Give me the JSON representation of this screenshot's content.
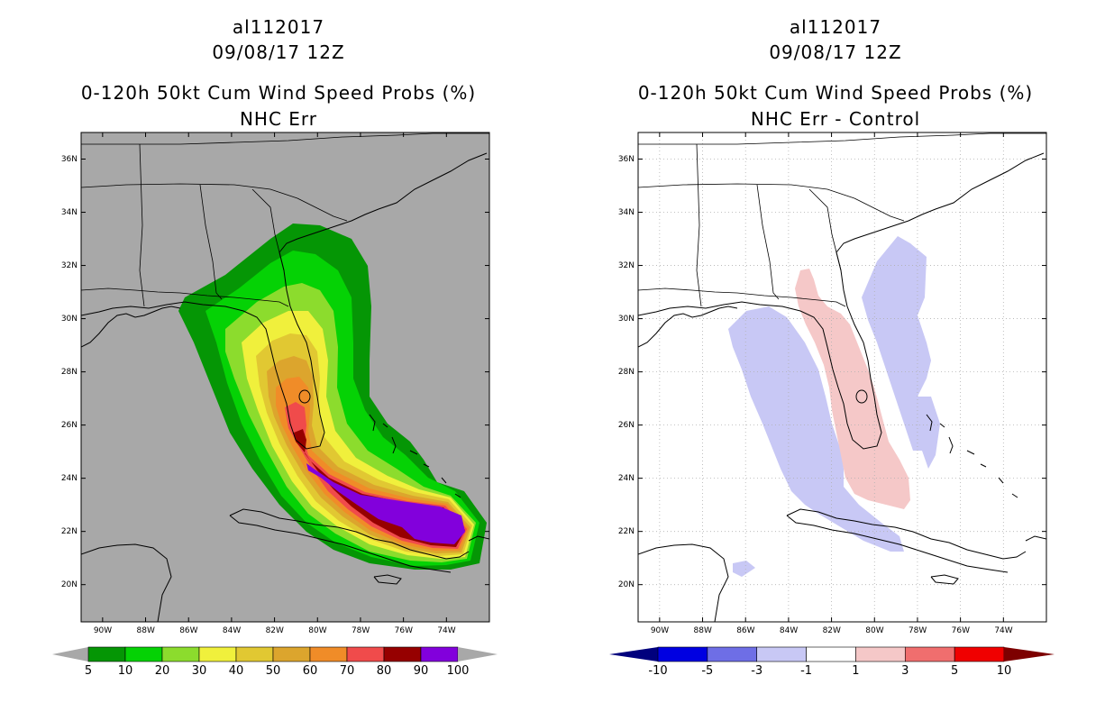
{
  "panels": [
    {
      "id": "left",
      "storm_id": "al112017",
      "datetime": "09/08/17 12Z",
      "product": "0-120h 50kt Cum Wind Speed Probs (%)",
      "subtitle": "NHC Err",
      "background_color": "#a8a8a8",
      "colorbar": {
        "labels": [
          "5",
          "10",
          "20",
          "30",
          "40",
          "50",
          "60",
          "70",
          "80",
          "90",
          "100"
        ],
        "colors": [
          "#059605",
          "#05d205",
          "#8cdc2d",
          "#f0f03c",
          "#e1c832",
          "#dca52d",
          "#f08c28",
          "#f04b4b",
          "#960000",
          "#8200dc"
        ],
        "under_color": "#a8a8a8",
        "over_color": "#a8a8a8"
      }
    },
    {
      "id": "right",
      "storm_id": "al112017",
      "datetime": "09/08/17 12Z",
      "product": "0-120h 50kt Cum Wind Speed Probs (%)",
      "subtitle": "NHC Err - Control",
      "background_color": "#ffffff",
      "colorbar": {
        "labels": [
          "-10",
          "-5",
          "-3",
          "-1",
          "1",
          "3",
          "5",
          "10"
        ],
        "colors": [
          "#0000e1",
          "#6e6ee6",
          "#c8c8f5",
          "#ffffff",
          "#f5c8c8",
          "#f06e6e",
          "#f00000"
        ],
        "under_color": "#00007d",
        "over_color": "#7d0000"
      }
    }
  ],
  "axes": {
    "lon_labels": [
      "90W",
      "88W",
      "86W",
      "84W",
      "82W",
      "80W",
      "78W",
      "76W",
      "74W"
    ],
    "lat_labels": [
      "36N",
      "34N",
      "32N",
      "30N",
      "28N",
      "26N",
      "24N",
      "22N",
      "20N"
    ],
    "lon_range": [
      -91.0,
      -72.0
    ],
    "lat_range": [
      18.6,
      37.0
    ]
  }
}
